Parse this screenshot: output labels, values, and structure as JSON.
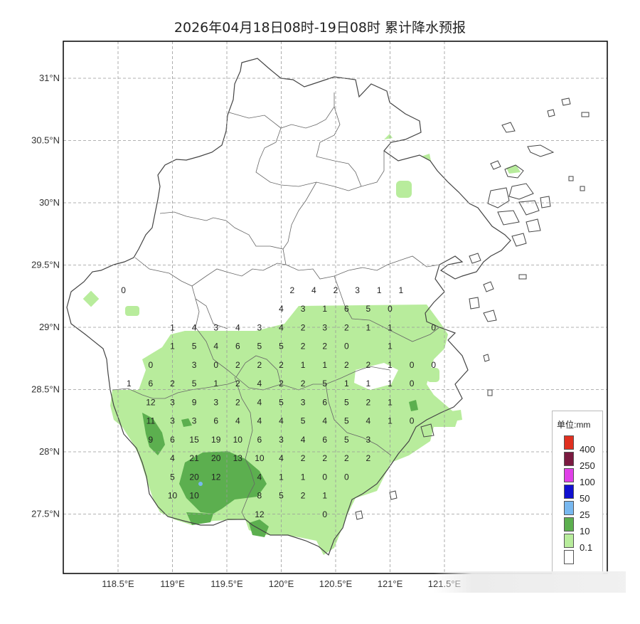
{
  "title": "2026年04月18日08时-19日08时 累计降水预报",
  "colors": {
    "frame": "#000000",
    "grid": "#999999",
    "boundary": "#555555",
    "light_green": "#b8ec9c",
    "mid_green": "#5caf4f",
    "blue": "#78b8f0"
  },
  "lat_labels": [
    "31°N",
    "30.5°N",
    "30°N",
    "29.5°N",
    "29°N",
    "28.5°N",
    "28°N",
    "27.5°N"
  ],
  "lon_labels": [
    "118.5°E",
    "119°E",
    "119.5°E",
    "120°E",
    "120.5°E",
    "121°E",
    "121.5°E"
  ],
  "legend": {
    "title": "单位:mm",
    "levels": [
      {
        "label": "400",
        "color": "#e03020"
      },
      {
        "label": "250",
        "color": "#7a1a40"
      },
      {
        "label": "100",
        "color": "#e040e8"
      },
      {
        "label": "50",
        "color": "#1010d0"
      },
      {
        "label": "25",
        "color": "#78b8f0"
      },
      {
        "label": "10",
        "color": "#5caf4f"
      },
      {
        "label": "0.1",
        "color": "#b8ec9c"
      },
      {
        "label": "",
        "color": "#ffffff"
      }
    ]
  },
  "grid_values": {
    "columns_lon": [
      118.55,
      118.65,
      118.75,
      118.85,
      118.95,
      119.05,
      119.15,
      119.25,
      119.35,
      119.45,
      119.55,
      119.65,
      119.75,
      119.85,
      119.95,
      120.05,
      120.15,
      120.25,
      120.35,
      120.45,
      120.55,
      120.65,
      120.75,
      120.85,
      120.95,
      121.05,
      121.15
    ],
    "points": [
      {
        "lon": 120.1,
        "lat": 29.15,
        "v": "2"
      },
      {
        "lon": 120.3,
        "lat": 29.15,
        "v": "4"
      },
      {
        "lon": 120.5,
        "lat": 29.15,
        "v": "2"
      },
      {
        "lon": 120.7,
        "lat": 29.15,
        "v": "3"
      },
      {
        "lon": 120.9,
        "lat": 29.15,
        "v": "1"
      },
      {
        "lon": 121.1,
        "lat": 29.15,
        "v": "1"
      },
      {
        "lon": 118.55,
        "lat": 29.15,
        "v": "0"
      },
      {
        "lon": 120.0,
        "lat": 29.0,
        "v": "4"
      },
      {
        "lon": 120.2,
        "lat": 29.0,
        "v": "3"
      },
      {
        "lon": 120.4,
        "lat": 29.0,
        "v": "1"
      },
      {
        "lon": 120.6,
        "lat": 29.0,
        "v": "6"
      },
      {
        "lon": 120.8,
        "lat": 29.0,
        "v": "5"
      },
      {
        "lon": 121.0,
        "lat": 29.0,
        "v": "0"
      },
      {
        "lon": 119.0,
        "lat": 28.85,
        "v": "1"
      },
      {
        "lon": 119.2,
        "lat": 28.85,
        "v": "4"
      },
      {
        "lon": 119.4,
        "lat": 28.85,
        "v": "3"
      },
      {
        "lon": 119.6,
        "lat": 28.85,
        "v": "4"
      },
      {
        "lon": 119.8,
        "lat": 28.85,
        "v": "3"
      },
      {
        "lon": 120.0,
        "lat": 28.85,
        "v": "4"
      },
      {
        "lon": 120.2,
        "lat": 28.85,
        "v": "2"
      },
      {
        "lon": 120.4,
        "lat": 28.85,
        "v": "3"
      },
      {
        "lon": 120.6,
        "lat": 28.85,
        "v": "2"
      },
      {
        "lon": 120.8,
        "lat": 28.85,
        "v": "1"
      },
      {
        "lon": 121.0,
        "lat": 28.85,
        "v": "1"
      },
      {
        "lon": 121.4,
        "lat": 28.85,
        "v": "0"
      },
      {
        "lon": 119.0,
        "lat": 28.7,
        "v": "1"
      },
      {
        "lon": 119.2,
        "lat": 28.7,
        "v": "5"
      },
      {
        "lon": 119.4,
        "lat": 28.7,
        "v": "4"
      },
      {
        "lon": 119.6,
        "lat": 28.7,
        "v": "6"
      },
      {
        "lon": 119.8,
        "lat": 28.7,
        "v": "5"
      },
      {
        "lon": 120.0,
        "lat": 28.7,
        "v": "5"
      },
      {
        "lon": 120.2,
        "lat": 28.7,
        "v": "2"
      },
      {
        "lon": 120.4,
        "lat": 28.7,
        "v": "2"
      },
      {
        "lon": 120.6,
        "lat": 28.7,
        "v": "0"
      },
      {
        "lon": 121.0,
        "lat": 28.7,
        "v": "1"
      },
      {
        "lon": 118.8,
        "lat": 28.55,
        "v": "0"
      },
      {
        "lon": 119.2,
        "lat": 28.55,
        "v": "3"
      },
      {
        "lon": 119.4,
        "lat": 28.55,
        "v": "0"
      },
      {
        "lon": 119.6,
        "lat": 28.55,
        "v": "2"
      },
      {
        "lon": 119.8,
        "lat": 28.55,
        "v": "2"
      },
      {
        "lon": 120.0,
        "lat": 28.55,
        "v": "2"
      },
      {
        "lon": 120.2,
        "lat": 28.55,
        "v": "1"
      },
      {
        "lon": 120.4,
        "lat": 28.55,
        "v": "1"
      },
      {
        "lon": 120.6,
        "lat": 28.55,
        "v": "2"
      },
      {
        "lon": 120.8,
        "lat": 28.55,
        "v": "2"
      },
      {
        "lon": 121.0,
        "lat": 28.55,
        "v": "1"
      },
      {
        "lon": 121.2,
        "lat": 28.55,
        "v": "0"
      },
      {
        "lon": 121.4,
        "lat": 28.55,
        "v": "0"
      },
      {
        "lon": 118.6,
        "lat": 28.4,
        "v": "1"
      },
      {
        "lon": 118.8,
        "lat": 28.4,
        "v": "6"
      },
      {
        "lon": 119.0,
        "lat": 28.4,
        "v": "2"
      },
      {
        "lon": 119.2,
        "lat": 28.4,
        "v": "5"
      },
      {
        "lon": 119.4,
        "lat": 28.4,
        "v": "1"
      },
      {
        "lon": 119.6,
        "lat": 28.4,
        "v": "2"
      },
      {
        "lon": 119.8,
        "lat": 28.4,
        "v": "4"
      },
      {
        "lon": 120.0,
        "lat": 28.4,
        "v": "2"
      },
      {
        "lon": 120.2,
        "lat": 28.4,
        "v": "2"
      },
      {
        "lon": 120.4,
        "lat": 28.4,
        "v": "5"
      },
      {
        "lon": 120.6,
        "lat": 28.4,
        "v": "1"
      },
      {
        "lon": 120.8,
        "lat": 28.4,
        "v": "1"
      },
      {
        "lon": 121.0,
        "lat": 28.4,
        "v": "1"
      },
      {
        "lon": 121.2,
        "lat": 28.4,
        "v": "0"
      },
      {
        "lon": 118.8,
        "lat": 28.25,
        "v": "12"
      },
      {
        "lon": 119.0,
        "lat": 28.25,
        "v": "3"
      },
      {
        "lon": 119.2,
        "lat": 28.25,
        "v": "9"
      },
      {
        "lon": 119.4,
        "lat": 28.25,
        "v": "3"
      },
      {
        "lon": 119.6,
        "lat": 28.25,
        "v": "2"
      },
      {
        "lon": 119.8,
        "lat": 28.25,
        "v": "4"
      },
      {
        "lon": 120.0,
        "lat": 28.25,
        "v": "5"
      },
      {
        "lon": 120.2,
        "lat": 28.25,
        "v": "3"
      },
      {
        "lon": 120.4,
        "lat": 28.25,
        "v": "6"
      },
      {
        "lon": 120.6,
        "lat": 28.25,
        "v": "5"
      },
      {
        "lon": 120.8,
        "lat": 28.25,
        "v": "2"
      },
      {
        "lon": 121.0,
        "lat": 28.25,
        "v": "1"
      },
      {
        "lon": 118.8,
        "lat": 28.1,
        "v": "11"
      },
      {
        "lon": 119.0,
        "lat": 28.1,
        "v": "3"
      },
      {
        "lon": 119.2,
        "lat": 28.1,
        "v": "3"
      },
      {
        "lon": 119.4,
        "lat": 28.1,
        "v": "6"
      },
      {
        "lon": 119.6,
        "lat": 28.1,
        "v": "4"
      },
      {
        "lon": 119.8,
        "lat": 28.1,
        "v": "4"
      },
      {
        "lon": 120.0,
        "lat": 28.1,
        "v": "4"
      },
      {
        "lon": 120.2,
        "lat": 28.1,
        "v": "5"
      },
      {
        "lon": 120.4,
        "lat": 28.1,
        "v": "4"
      },
      {
        "lon": 120.6,
        "lat": 28.1,
        "v": "5"
      },
      {
        "lon": 120.8,
        "lat": 28.1,
        "v": "4"
      },
      {
        "lon": 121.0,
        "lat": 28.1,
        "v": "1"
      },
      {
        "lon": 121.2,
        "lat": 28.1,
        "v": "0"
      },
      {
        "lon": 118.8,
        "lat": 27.95,
        "v": "9"
      },
      {
        "lon": 119.0,
        "lat": 27.95,
        "v": "6"
      },
      {
        "lon": 119.2,
        "lat": 27.95,
        "v": "15"
      },
      {
        "lon": 119.4,
        "lat": 27.95,
        "v": "19"
      },
      {
        "lon": 119.6,
        "lat": 27.95,
        "v": "10"
      },
      {
        "lon": 119.8,
        "lat": 27.95,
        "v": "6"
      },
      {
        "lon": 120.0,
        "lat": 27.95,
        "v": "3"
      },
      {
        "lon": 120.2,
        "lat": 27.95,
        "v": "4"
      },
      {
        "lon": 120.4,
        "lat": 27.95,
        "v": "6"
      },
      {
        "lon": 120.6,
        "lat": 27.95,
        "v": "5"
      },
      {
        "lon": 120.8,
        "lat": 27.95,
        "v": "3"
      },
      {
        "lon": 119.0,
        "lat": 27.8,
        "v": "4"
      },
      {
        "lon": 119.2,
        "lat": 27.8,
        "v": "21"
      },
      {
        "lon": 119.4,
        "lat": 27.8,
        "v": "20"
      },
      {
        "lon": 119.6,
        "lat": 27.8,
        "v": "13"
      },
      {
        "lon": 119.8,
        "lat": 27.8,
        "v": "10"
      },
      {
        "lon": 120.0,
        "lat": 27.8,
        "v": "4"
      },
      {
        "lon": 120.2,
        "lat": 27.8,
        "v": "2"
      },
      {
        "lon": 120.4,
        "lat": 27.8,
        "v": "2"
      },
      {
        "lon": 120.6,
        "lat": 27.8,
        "v": "2"
      },
      {
        "lon": 120.8,
        "lat": 27.8,
        "v": "2"
      },
      {
        "lon": 119.0,
        "lat": 27.65,
        "v": "5"
      },
      {
        "lon": 119.2,
        "lat": 27.65,
        "v": "20"
      },
      {
        "lon": 119.4,
        "lat": 27.65,
        "v": "12"
      },
      {
        "lon": 119.8,
        "lat": 27.65,
        "v": "4"
      },
      {
        "lon": 120.0,
        "lat": 27.65,
        "v": "1"
      },
      {
        "lon": 120.2,
        "lat": 27.65,
        "v": "1"
      },
      {
        "lon": 120.4,
        "lat": 27.65,
        "v": "0"
      },
      {
        "lon": 120.6,
        "lat": 27.65,
        "v": "0"
      },
      {
        "lon": 119.0,
        "lat": 27.5,
        "v": "10"
      },
      {
        "lon": 119.2,
        "lat": 27.5,
        "v": "10"
      },
      {
        "lon": 119.8,
        "lat": 27.5,
        "v": "8"
      },
      {
        "lon": 120.0,
        "lat": 27.5,
        "v": "5"
      },
      {
        "lon": 120.2,
        "lat": 27.5,
        "v": "2"
      },
      {
        "lon": 120.4,
        "lat": 27.5,
        "v": "1"
      },
      {
        "lon": 119.8,
        "lat": 27.35,
        "v": "12"
      },
      {
        "lon": 120.4,
        "lat": 27.35,
        "v": "0"
      }
    ]
  }
}
